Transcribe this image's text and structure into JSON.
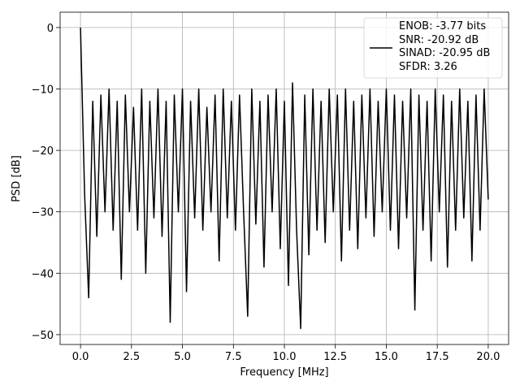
{
  "chart_data": {
    "type": "line",
    "xlabel": "Frequency [MHz]",
    "ylabel": "PSD [dB]",
    "xlim": [
      -1,
      21
    ],
    "ylim": [
      -51.6,
      2.5
    ],
    "xticks": [
      {
        "value": 0,
        "label": "0.0"
      },
      2.5,
      {
        "value": 5,
        "label": "5.0"
      },
      7.5,
      {
        "value": 10,
        "label": "10.0"
      },
      12.5,
      {
        "value": 15,
        "label": "15.0"
      },
      17.5,
      {
        "value": 20,
        "label": "20.0"
      }
    ],
    "yticks": [
      {
        "value": -50,
        "label": "−50"
      },
      {
        "value": -40,
        "label": "−40"
      },
      {
        "value": -30,
        "label": "−30"
      },
      {
        "value": -20,
        "label": "−20"
      },
      {
        "value": -10,
        "label": "−10"
      },
      0
    ],
    "grid": true,
    "legend": "upper right",
    "x": [
      0,
      0.2,
      0.4,
      0.6,
      0.8,
      1,
      1.2,
      1.4,
      1.6,
      1.8,
      2,
      2.2,
      2.4,
      2.6,
      2.8,
      3,
      3.2,
      3.4,
      3.6,
      3.8,
      4,
      4.2,
      4.4,
      4.6,
      4.8,
      5,
      5.2,
      5.4,
      5.6,
      5.8,
      6,
      6.2,
      6.4,
      6.6,
      6.8,
      7,
      7.2,
      7.4,
      7.6,
      7.8,
      8,
      8.2,
      8.4,
      8.6,
      8.8,
      9,
      9.2,
      9.4,
      9.6,
      9.8,
      10,
      10.2,
      10.4,
      10.6,
      10.8,
      11,
      11.2,
      11.4,
      11.6,
      11.8,
      12,
      12.2,
      12.4,
      12.6,
      12.8,
      13,
      13.2,
      13.4,
      13.6,
      13.8,
      14,
      14.2,
      14.4,
      14.6,
      14.8,
      15,
      15.2,
      15.4,
      15.6,
      15.8,
      16,
      16.2,
      16.4,
      16.6,
      16.8,
      17,
      17.2,
      17.4,
      17.6,
      17.8,
      18,
      18.2,
      18.4,
      18.6,
      18.8,
      19,
      19.2,
      19.4,
      19.6,
      19.8,
      20
    ],
    "series": [
      {
        "name": "ENOB: -3.77 bits\nSNR: -20.92 dB\nSINAD: -20.95 dB\nSFDR: 3.26",
        "color": "#000000",
        "values": [
          0,
          -27,
          -44,
          -12,
          -34,
          -11,
          -30,
          -10,
          -33,
          -12,
          -41,
          -11,
          -30,
          -13,
          -33,
          -10,
          -40,
          -12,
          -31,
          -10,
          -34,
          -12,
          -48,
          -11,
          -30,
          -10,
          -43,
          -12,
          -31,
          -10,
          -33,
          -13,
          -30,
          -11,
          -38,
          -10,
          -31,
          -12,
          -33,
          -11,
          -30,
          -47,
          -10,
          -32,
          -12,
          -39,
          -11,
          -30,
          -10,
          -36,
          -12,
          -42,
          -9,
          -33,
          -49,
          -11,
          -37,
          -10,
          -33,
          -12,
          -35,
          -10,
          -30,
          -11,
          -38,
          -10,
          -33,
          -12,
          -36,
          -11,
          -31,
          -10,
          -34,
          -12,
          -30,
          -10,
          -33,
          -11,
          -36,
          -12,
          -31,
          -10,
          -46,
          -11,
          -33,
          -12,
          -38,
          -10,
          -30,
          -11,
          -39,
          -12,
          -33,
          -10,
          -31,
          -12,
          -38,
          -11,
          -33,
          -10,
          -28
        ]
      }
    ]
  }
}
